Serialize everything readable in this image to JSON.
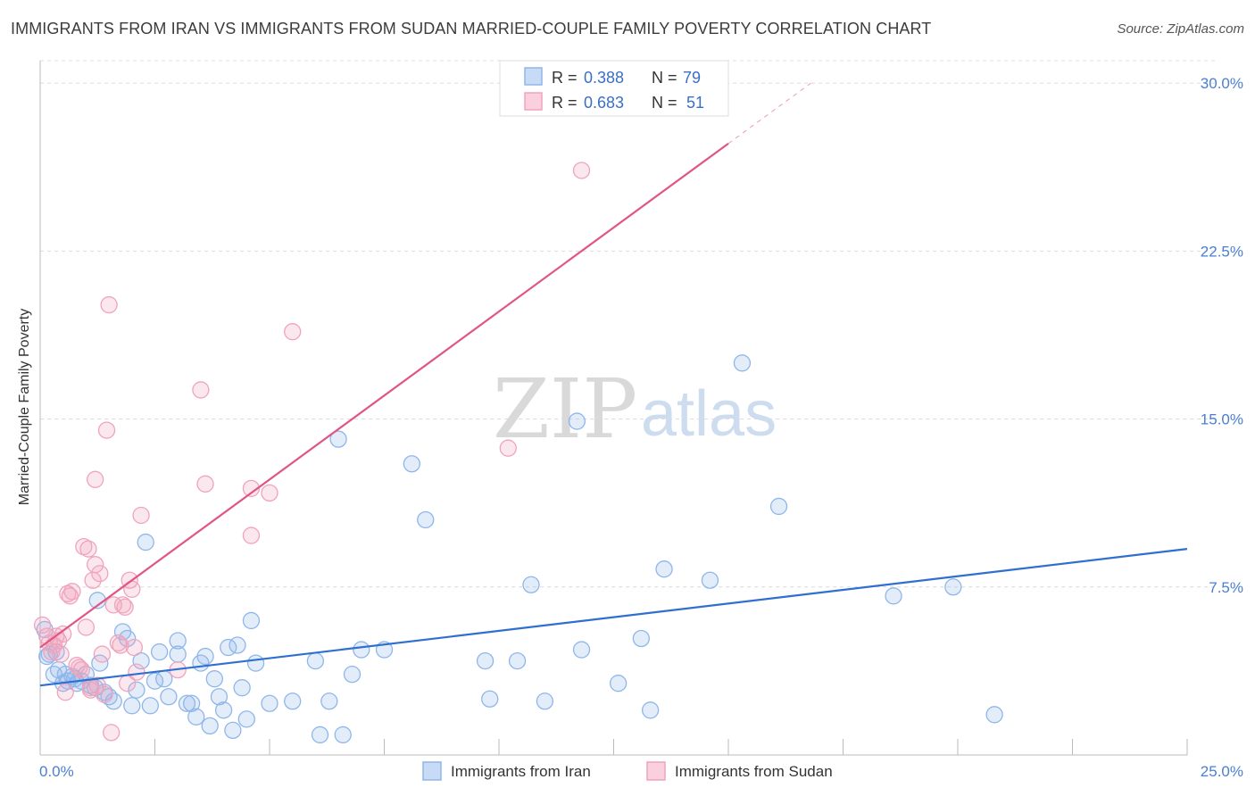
{
  "title": "IMMIGRANTS FROM IRAN VS IMMIGRANTS FROM SUDAN MARRIED-COUPLE FAMILY POVERTY CORRELATION CHART",
  "source": "Source: ZipAtlas.com",
  "watermark": {
    "zip": "ZIP",
    "atlas": "atlas"
  },
  "legend_top": [
    {
      "r_label": "R = ",
      "r_value": "0.388",
      "n_label": "N = ",
      "n_value": "79",
      "color": "#8fb6ea"
    },
    {
      "r_label": "R = ",
      "r_value": "0.683",
      "n_label": "N = ",
      "n_value": "51",
      "color": "#f0a3bd"
    }
  ],
  "chart_data": {
    "type": "scatter",
    "title": "IMMIGRANTS FROM IRAN VS IMMIGRANTS FROM SUDAN MARRIED-COUPLE FAMILY POVERTY CORRELATION CHART",
    "xlabel": "",
    "ylabel": "Married-Couple Family Poverty",
    "xlim": [
      0,
      25
    ],
    "ylim": [
      0,
      31
    ],
    "x_tick_labels": [
      "0.0%",
      "25.0%"
    ],
    "y_ticks": [
      7.5,
      15.0,
      22.5,
      30.0
    ],
    "y_tick_labels": [
      "7.5%",
      "15.0%",
      "22.5%",
      "30.0%"
    ],
    "series": [
      {
        "name": "Immigrants from Iran",
        "color": "#8fb6ea",
        "line_color": "#2f6fd0",
        "trend": {
          "x0": 0,
          "y0": 3.1,
          "x1": 25,
          "y1": 9.2
        },
        "points": [
          [
            0.1,
            5.6
          ],
          [
            0.2,
            4.5
          ],
          [
            0.3,
            3.6
          ],
          [
            0.4,
            3.8
          ],
          [
            0.5,
            3.2
          ],
          [
            0.6,
            3.3
          ],
          [
            0.7,
            3.5
          ],
          [
            0.8,
            3.2
          ],
          [
            0.9,
            3.3
          ],
          [
            1.0,
            3.6
          ],
          [
            1.1,
            3.1
          ],
          [
            1.2,
            3.0
          ],
          [
            1.3,
            4.1
          ],
          [
            1.4,
            2.8
          ],
          [
            1.5,
            2.6
          ],
          [
            1.6,
            2.4
          ],
          [
            1.8,
            5.5
          ],
          [
            1.9,
            5.2
          ],
          [
            2.0,
            2.2
          ],
          [
            2.1,
            2.9
          ],
          [
            2.2,
            4.2
          ],
          [
            2.3,
            9.5
          ],
          [
            2.4,
            2.2
          ],
          [
            2.5,
            3.3
          ],
          [
            2.6,
            4.6
          ],
          [
            2.7,
            3.4
          ],
          [
            2.8,
            2.6
          ],
          [
            3.0,
            5.1
          ],
          [
            3.0,
            4.5
          ],
          [
            3.2,
            2.3
          ],
          [
            3.3,
            2.3
          ],
          [
            3.4,
            1.7
          ],
          [
            3.5,
            4.1
          ],
          [
            3.6,
            4.4
          ],
          [
            3.7,
            1.3
          ],
          [
            3.8,
            3.4
          ],
          [
            3.9,
            2.6
          ],
          [
            4.0,
            2.0
          ],
          [
            4.1,
            4.8
          ],
          [
            4.2,
            1.1
          ],
          [
            4.3,
            4.9
          ],
          [
            4.4,
            3.0
          ],
          [
            4.5,
            1.6
          ],
          [
            4.6,
            6.0
          ],
          [
            4.7,
            4.1
          ],
          [
            5.0,
            2.3
          ],
          [
            5.5,
            2.4
          ],
          [
            6.0,
            4.2
          ],
          [
            6.1,
            0.9
          ],
          [
            6.3,
            2.4
          ],
          [
            6.5,
            14.1
          ],
          [
            6.6,
            0.9
          ],
          [
            6.8,
            3.6
          ],
          [
            7.0,
            4.7
          ],
          [
            7.5,
            4.7
          ],
          [
            8.1,
            13.0
          ],
          [
            8.4,
            10.5
          ],
          [
            9.7,
            4.2
          ],
          [
            9.8,
            2.5
          ],
          [
            10.4,
            4.2
          ],
          [
            10.7,
            7.6
          ],
          [
            11.0,
            2.4
          ],
          [
            11.7,
            14.9
          ],
          [
            11.8,
            4.7
          ],
          [
            12.6,
            3.2
          ],
          [
            13.1,
            5.2
          ],
          [
            13.3,
            2.0
          ],
          [
            13.6,
            8.3
          ],
          [
            14.6,
            7.8
          ],
          [
            15.3,
            17.5
          ],
          [
            16.1,
            11.1
          ],
          [
            18.6,
            7.1
          ],
          [
            19.9,
            7.5
          ],
          [
            20.8,
            1.8
          ],
          [
            0.15,
            4.4
          ],
          [
            0.35,
            4.6
          ],
          [
            0.55,
            3.6
          ],
          [
            0.75,
            3.4
          ],
          [
            1.25,
            6.9
          ]
        ]
      },
      {
        "name": "Immigrants from Sudan",
        "color": "#f0a3bd",
        "line_color": "#e05585",
        "trend": {
          "x0": 0,
          "y0": 4.8,
          "x1": 15,
          "y1": 27.3
        },
        "points": [
          [
            0.05,
            5.8
          ],
          [
            0.15,
            5.3
          ],
          [
            0.2,
            5.0
          ],
          [
            0.3,
            4.9
          ],
          [
            0.4,
            5.1
          ],
          [
            0.5,
            5.4
          ],
          [
            0.6,
            7.2
          ],
          [
            0.7,
            7.3
          ],
          [
            0.8,
            4.0
          ],
          [
            0.9,
            3.8
          ],
          [
            0.95,
            9.3
          ],
          [
            1.0,
            5.7
          ],
          [
            1.05,
            9.2
          ],
          [
            1.1,
            3.0
          ],
          [
            1.1,
            2.9
          ],
          [
            1.15,
            7.8
          ],
          [
            1.2,
            12.3
          ],
          [
            1.2,
            8.5
          ],
          [
            1.3,
            8.1
          ],
          [
            1.35,
            4.5
          ],
          [
            1.4,
            2.7
          ],
          [
            1.45,
            14.5
          ],
          [
            1.5,
            20.1
          ],
          [
            1.55,
            1.0
          ],
          [
            1.6,
            6.7
          ],
          [
            1.7,
            5.0
          ],
          [
            1.75,
            4.9
          ],
          [
            1.8,
            6.7
          ],
          [
            1.85,
            6.6
          ],
          [
            1.9,
            3.2
          ],
          [
            1.95,
            7.8
          ],
          [
            2.0,
            7.4
          ],
          [
            2.05,
            4.8
          ],
          [
            2.1,
            3.7
          ],
          [
            2.2,
            10.7
          ],
          [
            3.0,
            3.8
          ],
          [
            3.5,
            16.3
          ],
          [
            3.6,
            12.1
          ],
          [
            4.6,
            9.8
          ],
          [
            4.6,
            11.9
          ],
          [
            5.0,
            11.7
          ],
          [
            5.5,
            18.9
          ],
          [
            10.2,
            13.7
          ],
          [
            11.8,
            26.1
          ],
          [
            0.25,
            4.6
          ],
          [
            0.45,
            4.5
          ],
          [
            0.65,
            7.1
          ],
          [
            0.85,
            3.9
          ],
          [
            1.25,
            3.1
          ],
          [
            0.35,
            5.3
          ],
          [
            0.55,
            2.8
          ]
        ]
      }
    ]
  },
  "bottom_legend": [
    "Immigrants from Iran",
    "Immigrants from Sudan"
  ]
}
